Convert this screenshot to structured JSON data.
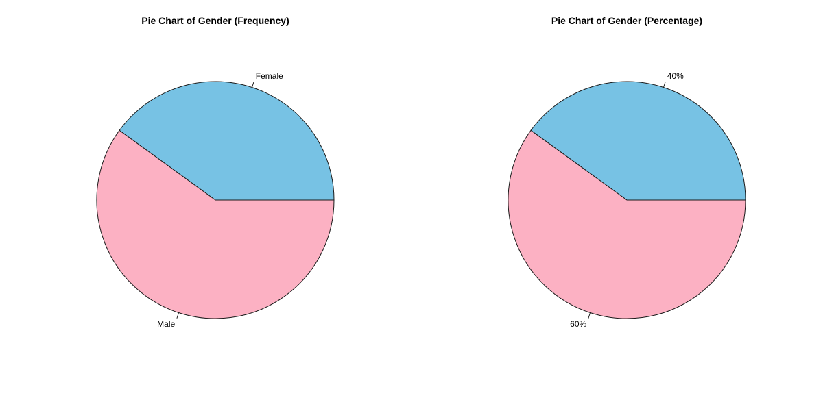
{
  "chart_data": [
    {
      "type": "pie",
      "title": "Pie Chart of Gender (Frequency)",
      "categories": [
        "Female",
        "Male"
      ],
      "values": [
        40,
        60
      ],
      "labels": [
        "Female",
        "Male"
      ],
      "colors": [
        "#77c2e4",
        "#fcb1c3"
      ],
      "start_angle_deg": 0,
      "direction": "counterclockwise"
    },
    {
      "type": "pie",
      "title": "Pie Chart of Gender (Percentage)",
      "categories": [
        "Female",
        "Male"
      ],
      "values": [
        40,
        60
      ],
      "labels": [
        "40%",
        "60%"
      ],
      "colors": [
        "#77c2e4",
        "#fcb1c3"
      ],
      "start_angle_deg": 0,
      "direction": "counterclockwise"
    }
  ]
}
